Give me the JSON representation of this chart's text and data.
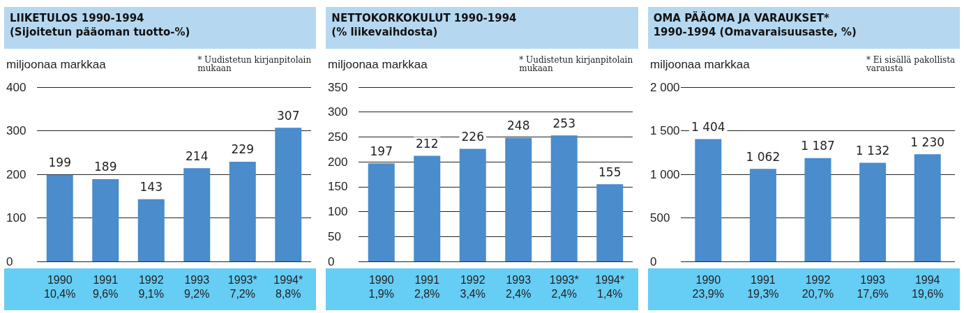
{
  "chart_data": [
    {
      "type": "bar",
      "title": "LIIKETULOS 1990-1994",
      "subtitle": "(Sijoitetun pääoman tuotto-%)",
      "ylabel": "miljoonaa markkaa",
      "annotations": [
        "* Uudistetun kirjanpitolain mukaan"
      ],
      "categories": [
        "1990\n10,4%",
        "1991\n9,6%",
        "1992\n9,1%",
        "1993\n9,2%",
        "1993*\n7,2%",
        "1994*\n8,8%"
      ],
      "values": [
        199,
        189,
        143,
        214,
        229,
        307
      ],
      "color": "#4a8ccc",
      "ylim": [
        0,
        400
      ],
      "yticks": [
        0,
        100,
        200,
        300,
        400
      ],
      "grid": "y",
      "data_labels": true
    },
    {
      "type": "bar",
      "title": "NETTOKORKOKULUT 1990-1994",
      "subtitle": "(% liikevaihdosta)",
      "ylabel": "miljoonaa markkaa",
      "annotations": [
        "* Uudistetun kirjanpitolain mukaan"
      ],
      "categories": [
        "1990\n1,9%",
        "1991\n2,8%",
        "1992\n3,4%",
        "1993\n2,4%",
        "1993*\n2,4%",
        "1994*\n1,4%"
      ],
      "values": [
        197,
        212,
        226,
        248,
        253,
        155
      ],
      "color": "#4a8ccc",
      "ylim": [
        0,
        350
      ],
      "yticks": [
        0,
        50,
        100,
        150,
        200,
        250,
        300,
        350
      ],
      "grid": "y",
      "data_labels": true
    },
    {
      "type": "bar",
      "title": "OMA PÄÄOMA JA VARAUKSET*",
      "subtitle": "1990-1994 (Omavaraisuusaste, %)",
      "ylabel": "miljoonaa markkaa",
      "annotations": [
        "* Ei sisällä pakollista varausta"
      ],
      "categories": [
        "1990\n23,9%",
        "1991\n19,3%",
        "1992\n20,7%",
        "1993\n17,6%",
        "1994\n19,6%"
      ],
      "values": [
        1404,
        1062,
        1187,
        1132,
        1230
      ],
      "value_labels": [
        "1 404",
        "1 062",
        "1 187",
        "1 132",
        "1 230"
      ],
      "color": "#4a8ccc",
      "ylim": [
        0,
        2000
      ],
      "yticks": [
        0,
        500,
        {
          "value": 1000,
          "label": "1 000"
        },
        {
          "value": 1500,
          "label": "1 500"
        },
        {
          "value": 2000,
          "label": "2 000"
        }
      ],
      "grid": "y"
    }
  ]
}
